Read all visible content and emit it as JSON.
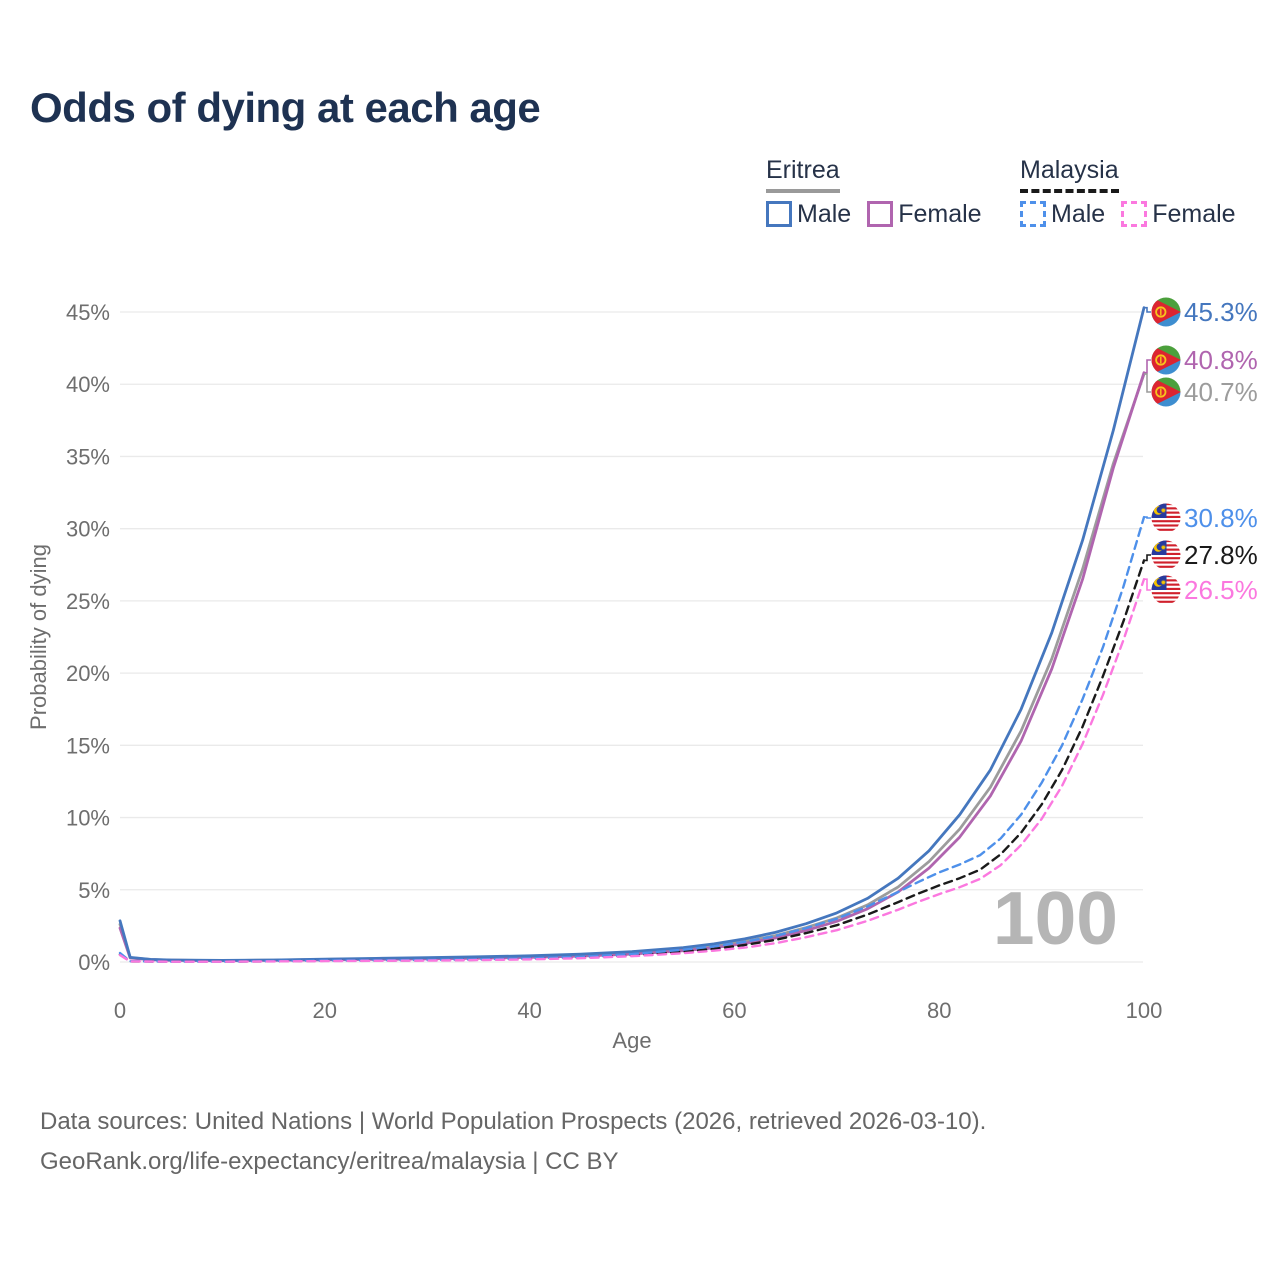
{
  "title": "Odds of dying at each age",
  "legend": {
    "groups": [
      {
        "name": "Eritrea",
        "line_style": "solid",
        "header_color": "#9a9a9a",
        "items": [
          {
            "label": "Male",
            "color": "#4577be",
            "dashed": false
          },
          {
            "label": "Female",
            "color": "#b065af",
            "dashed": false
          }
        ]
      },
      {
        "name": "Malaysia",
        "line_style": "dashed",
        "header_color": "#1a1a1a",
        "items": [
          {
            "label": "Male",
            "color": "#4e90ea",
            "dashed": true
          },
          {
            "label": "Female",
            "color": "#fb78df",
            "dashed": true
          }
        ]
      }
    ]
  },
  "chart_data": {
    "type": "line",
    "title": "Odds of dying at each age",
    "xlabel": "Age",
    "ylabel": "Probability of dying",
    "xlim": [
      0,
      100
    ],
    "ylim": [
      0,
      46.5
    ],
    "grid": "horizontal-only",
    "watermark": "100",
    "x_ticks": [
      {
        "v": 0,
        "label": "0"
      },
      {
        "v": 20,
        "label": "20"
      },
      {
        "v": 40,
        "label": "40"
      },
      {
        "v": 60,
        "label": "60"
      },
      {
        "v": 80,
        "label": "80"
      },
      {
        "v": 100,
        "label": "100"
      }
    ],
    "y_ticks": [
      {
        "v": 0,
        "label": "0%"
      },
      {
        "v": 5,
        "label": "5%"
      },
      {
        "v": 10,
        "label": "10%"
      },
      {
        "v": 15,
        "label": "15%"
      },
      {
        "v": 20,
        "label": "20%"
      },
      {
        "v": 25,
        "label": "25%"
      },
      {
        "v": 30,
        "label": "30%"
      },
      {
        "v": 35,
        "label": "35%"
      },
      {
        "v": 40,
        "label": "40%"
      },
      {
        "v": 45,
        "label": "45%"
      }
    ],
    "series": [
      {
        "name": "Eritrea Male",
        "group": "Eritrea",
        "sex": "Male",
        "color": "#4577be",
        "dashed": false,
        "flag": "eritrea",
        "end_label": "45.3%",
        "end_value": 45.3,
        "points": [
          [
            0,
            2.85
          ],
          [
            1,
            0.32
          ],
          [
            3,
            0.18
          ],
          [
            5,
            0.14
          ],
          [
            10,
            0.11
          ],
          [
            15,
            0.14
          ],
          [
            20,
            0.2
          ],
          [
            25,
            0.25
          ],
          [
            30,
            0.3
          ],
          [
            35,
            0.36
          ],
          [
            40,
            0.43
          ],
          [
            45,
            0.54
          ],
          [
            50,
            0.72
          ],
          [
            55,
            1.0
          ],
          [
            58,
            1.25
          ],
          [
            61,
            1.6
          ],
          [
            64,
            2.05
          ],
          [
            67,
            2.65
          ],
          [
            70,
            3.4
          ],
          [
            73,
            4.4
          ],
          [
            76,
            5.8
          ],
          [
            79,
            7.7
          ],
          [
            82,
            10.2
          ],
          [
            85,
            13.3
          ],
          [
            88,
            17.5
          ],
          [
            91,
            22.8
          ],
          [
            94,
            29.2
          ],
          [
            97,
            36.8
          ],
          [
            100,
            45.3
          ]
        ]
      },
      {
        "name": "Eritrea Female",
        "group": "Eritrea",
        "sex": "Female",
        "color": "#b065af",
        "dashed": false,
        "flag": "eritrea",
        "end_label": "40.8%",
        "end_value": 40.8,
        "points": [
          [
            0,
            2.35
          ],
          [
            1,
            0.28
          ],
          [
            3,
            0.16
          ],
          [
            5,
            0.12
          ],
          [
            10,
            0.09
          ],
          [
            15,
            0.11
          ],
          [
            20,
            0.15
          ],
          [
            25,
            0.18
          ],
          [
            30,
            0.22
          ],
          [
            35,
            0.26
          ],
          [
            40,
            0.32
          ],
          [
            45,
            0.41
          ],
          [
            50,
            0.55
          ],
          [
            55,
            0.78
          ],
          [
            58,
            0.98
          ],
          [
            61,
            1.28
          ],
          [
            64,
            1.66
          ],
          [
            67,
            2.18
          ],
          [
            70,
            2.82
          ],
          [
            73,
            3.68
          ],
          [
            76,
            4.85
          ],
          [
            79,
            6.5
          ],
          [
            82,
            8.65
          ],
          [
            85,
            11.5
          ],
          [
            88,
            15.3
          ],
          [
            91,
            20.3
          ],
          [
            94,
            26.5
          ],
          [
            97,
            34.2
          ],
          [
            100,
            40.8
          ]
        ]
      },
      {
        "name": "Eritrea",
        "group": "Eritrea",
        "sex": "Both",
        "color": "#9c9c9c",
        "dashed": false,
        "flag": "eritrea",
        "end_label": "40.7%",
        "end_value": 40.7,
        "points": [
          [
            0,
            2.6
          ],
          [
            1,
            0.3
          ],
          [
            3,
            0.17
          ],
          [
            5,
            0.13
          ],
          [
            10,
            0.1
          ],
          [
            15,
            0.13
          ],
          [
            20,
            0.18
          ],
          [
            25,
            0.22
          ],
          [
            30,
            0.26
          ],
          [
            35,
            0.31
          ],
          [
            40,
            0.37
          ],
          [
            45,
            0.47
          ],
          [
            50,
            0.63
          ],
          [
            55,
            0.88
          ],
          [
            58,
            1.1
          ],
          [
            61,
            1.42
          ],
          [
            64,
            1.83
          ],
          [
            67,
            2.38
          ],
          [
            70,
            3.05
          ],
          [
            73,
            3.95
          ],
          [
            76,
            5.2
          ],
          [
            79,
            6.95
          ],
          [
            82,
            9.2
          ],
          [
            85,
            12.1
          ],
          [
            88,
            16.0
          ],
          [
            91,
            21.0
          ],
          [
            94,
            27.2
          ],
          [
            97,
            34.5
          ],
          [
            100,
            40.7
          ]
        ]
      },
      {
        "name": "Malaysia Male",
        "group": "Malaysia",
        "sex": "Male",
        "color": "#4e90ea",
        "dashed": true,
        "flag": "malaysia",
        "end_label": "30.8%",
        "end_value": 30.8,
        "points": [
          [
            0,
            0.62
          ],
          [
            1,
            0.05
          ],
          [
            5,
            0.03
          ],
          [
            10,
            0.03
          ],
          [
            15,
            0.06
          ],
          [
            20,
            0.1
          ],
          [
            25,
            0.12
          ],
          [
            30,
            0.14
          ],
          [
            35,
            0.18
          ],
          [
            40,
            0.25
          ],
          [
            45,
            0.36
          ],
          [
            50,
            0.55
          ],
          [
            55,
            0.85
          ],
          [
            58,
            1.08
          ],
          [
            61,
            1.4
          ],
          [
            64,
            1.8
          ],
          [
            67,
            2.35
          ],
          [
            70,
            3.0
          ],
          [
            73,
            3.85
          ],
          [
            76,
            4.85
          ],
          [
            78,
            5.55
          ],
          [
            80,
            6.2
          ],
          [
            82,
            6.75
          ],
          [
            84,
            7.4
          ],
          [
            86,
            8.55
          ],
          [
            88,
            10.2
          ],
          [
            90,
            12.4
          ],
          [
            92,
            15.0
          ],
          [
            94,
            18.2
          ],
          [
            96,
            21.8
          ],
          [
            98,
            26.0
          ],
          [
            100,
            30.8
          ]
        ]
      },
      {
        "name": "Malaysia",
        "group": "Malaysia",
        "sex": "Both",
        "color": "#1a1a1a",
        "dashed": true,
        "flag": "malaysia",
        "end_label": "27.8%",
        "end_value": 27.8,
        "points": [
          [
            0,
            0.52
          ],
          [
            1,
            0.045
          ],
          [
            5,
            0.025
          ],
          [
            10,
            0.025
          ],
          [
            15,
            0.05
          ],
          [
            20,
            0.08
          ],
          [
            25,
            0.1
          ],
          [
            30,
            0.12
          ],
          [
            35,
            0.15
          ],
          [
            40,
            0.21
          ],
          [
            45,
            0.3
          ],
          [
            50,
            0.46
          ],
          [
            55,
            0.71
          ],
          [
            58,
            0.91
          ],
          [
            61,
            1.18
          ],
          [
            64,
            1.53
          ],
          [
            67,
            2.0
          ],
          [
            70,
            2.55
          ],
          [
            73,
            3.28
          ],
          [
            76,
            4.15
          ],
          [
            78,
            4.75
          ],
          [
            80,
            5.3
          ],
          [
            82,
            5.8
          ],
          [
            84,
            6.4
          ],
          [
            86,
            7.45
          ],
          [
            88,
            8.95
          ],
          [
            90,
            10.9
          ],
          [
            92,
            13.3
          ],
          [
            94,
            16.3
          ],
          [
            96,
            19.8
          ],
          [
            98,
            23.6
          ],
          [
            100,
            27.8
          ]
        ]
      },
      {
        "name": "Malaysia Female",
        "group": "Malaysia",
        "sex": "Female",
        "color": "#fb78df",
        "dashed": true,
        "flag": "malaysia",
        "end_label": "26.5%",
        "end_value": 26.5,
        "points": [
          [
            0,
            0.48
          ],
          [
            1,
            0.04
          ],
          [
            5,
            0.02
          ],
          [
            10,
            0.02
          ],
          [
            15,
            0.04
          ],
          [
            20,
            0.06
          ],
          [
            25,
            0.08
          ],
          [
            30,
            0.1
          ],
          [
            35,
            0.13
          ],
          [
            40,
            0.18
          ],
          [
            45,
            0.26
          ],
          [
            50,
            0.4
          ],
          [
            55,
            0.61
          ],
          [
            58,
            0.78
          ],
          [
            61,
            1.0
          ],
          [
            64,
            1.3
          ],
          [
            67,
            1.72
          ],
          [
            70,
            2.2
          ],
          [
            73,
            2.85
          ],
          [
            76,
            3.62
          ],
          [
            78,
            4.18
          ],
          [
            80,
            4.7
          ],
          [
            82,
            5.18
          ],
          [
            84,
            5.75
          ],
          [
            86,
            6.7
          ],
          [
            88,
            8.1
          ],
          [
            90,
            9.9
          ],
          [
            92,
            12.2
          ],
          [
            94,
            15.1
          ],
          [
            96,
            18.5
          ],
          [
            98,
            22.3
          ],
          [
            100,
            26.5
          ]
        ]
      }
    ]
  },
  "footer": {
    "line1": "Data sources: United Nations | World Population Prospects (2026, retrieved 2026-03-10).",
    "line2": "GeoRank.org/life-expectancy/eritrea/malaysia | CC BY"
  },
  "colors": {
    "title": "#1e3252",
    "legend_text": "#263248",
    "axis_text": "#6e6e6e",
    "grid": "#eaeaea",
    "watermark": "#b5b5b5",
    "footer_text": "#666666"
  }
}
